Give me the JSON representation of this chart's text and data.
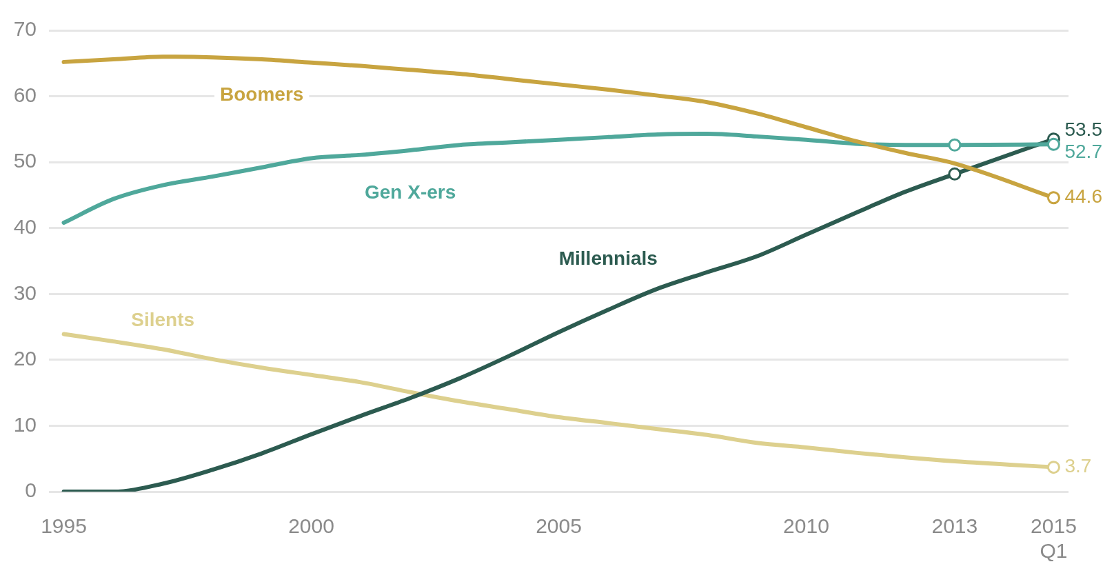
{
  "chart_data": {
    "type": "line",
    "x": [
      1995,
      1996,
      1997,
      1998,
      1999,
      2000,
      2001,
      2002,
      2003,
      2004,
      2005,
      2006,
      2007,
      2008,
      2009,
      2010,
      2011,
      2012,
      2013,
      2015
    ],
    "xlim": [
      1994.7,
      2015.3
    ],
    "xticks": [
      1995,
      2000,
      2005,
      2010,
      2013,
      {
        "value": 2015,
        "label": "2015\nQ1"
      }
    ],
    "ylim": [
      0,
      70
    ],
    "yticks": [
      0,
      10,
      20,
      30,
      40,
      50,
      60,
      70
    ],
    "grid": "y",
    "marker": "none",
    "series": [
      {
        "name": "Boomers",
        "color": "#c8a440",
        "values": [
          65.2,
          65.6,
          66.0,
          65.9,
          65.6,
          65.1,
          64.6,
          64.0,
          63.4,
          62.6,
          61.8,
          61.0,
          60.1,
          59.1,
          57.4,
          55.3,
          53.2,
          51.4,
          49.8,
          44.6
        ],
        "value_labels": [
          null,
          null,
          null,
          null,
          null,
          null,
          null,
          null,
          null,
          null,
          null,
          null,
          null,
          null,
          null,
          null,
          null,
          null,
          null,
          "44.6"
        ]
      },
      {
        "name": "Gen X-ers",
        "color": "#4fa89b",
        "values": [
          40.8,
          44.4,
          46.5,
          47.8,
          49.2,
          50.6,
          51.1,
          51.8,
          52.6,
          53.0,
          53.4,
          53.8,
          54.2,
          54.3,
          53.9,
          53.4,
          52.8,
          52.6,
          52.6,
          52.7
        ],
        "value_labels": [
          null,
          null,
          null,
          null,
          null,
          null,
          null,
          null,
          null,
          null,
          null,
          null,
          null,
          null,
          null,
          null,
          null,
          null,
          null,
          "52.7"
        ]
      },
      {
        "name": "Millennials",
        "color": "#2c5b50",
        "values": [
          0,
          0,
          1.2,
          3.3,
          5.8,
          8.7,
          11.5,
          14.2,
          17.2,
          20.6,
          24.2,
          27.6,
          30.8,
          33.3,
          35.7,
          39.0,
          42.3,
          45.5,
          48.2,
          53.5
        ],
        "value_labels": [
          null,
          null,
          null,
          null,
          null,
          null,
          null,
          null,
          null,
          null,
          null,
          null,
          null,
          null,
          null,
          null,
          null,
          null,
          null,
          "53.5"
        ]
      },
      {
        "name": "Silents",
        "color": "#ddd08e",
        "values": [
          23.9,
          22.8,
          21.6,
          20.1,
          18.8,
          17.7,
          16.6,
          15.1,
          13.7,
          12.5,
          11.3,
          10.4,
          9.5,
          8.6,
          7.4,
          6.7,
          5.9,
          5.2,
          4.6,
          3.7
        ],
        "value_labels": [
          null,
          null,
          null,
          null,
          null,
          null,
          null,
          null,
          null,
          null,
          null,
          null,
          null,
          null,
          null,
          null,
          null,
          null,
          null,
          "3.7"
        ]
      },
      {
        "type": "scatter",
        "color": "#c8a440",
        "values": [
          null,
          null,
          null,
          null,
          null,
          null,
          null,
          null,
          null,
          null,
          null,
          null,
          null,
          null,
          null,
          null,
          null,
          null,
          null,
          44.6
        ],
        "marker": "circle"
      },
      {
        "type": "scatter",
        "color": "#4fa89b",
        "values": [
          null,
          null,
          null,
          null,
          null,
          null,
          null,
          null,
          null,
          null,
          null,
          null,
          null,
          null,
          null,
          null,
          null,
          null,
          52.6,
          52.7
        ],
        "marker": "circle"
      },
      {
        "type": "scatter",
        "color": "#2c5b50",
        "values": [
          null,
          null,
          null,
          null,
          null,
          null,
          null,
          null,
          null,
          null,
          null,
          null,
          null,
          null,
          null,
          null,
          null,
          null,
          48.2,
          53.5
        ],
        "marker": "circle"
      },
      {
        "type": "scatter",
        "color": "#ddd08e",
        "values": [
          null,
          null,
          null,
          null,
          null,
          null,
          null,
          null,
          null,
          null,
          null,
          null,
          null,
          null,
          null,
          null,
          null,
          null,
          null,
          3.7
        ],
        "marker": "circle"
      }
    ]
  }
}
